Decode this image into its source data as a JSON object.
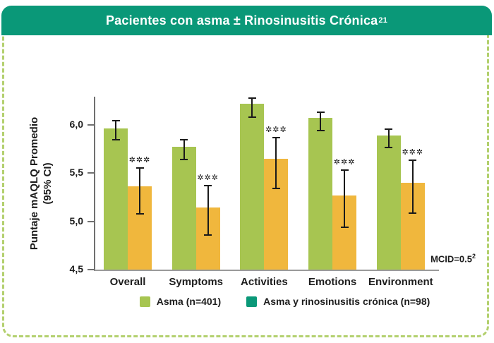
{
  "header": {
    "title": "Pacientes con asma ± Rinosinusitis Crónica",
    "title_sup": "21"
  },
  "colors": {
    "header_bg": "#0a9878",
    "asma": "#a7c551",
    "cronica": "#f0b73d",
    "legend_cronica": "#0a9878",
    "dashed_border": "#b3d06e",
    "axis_y": "#6f6f6f",
    "axis_x": "#9a9a9a",
    "error_bar": "#1a1a1a",
    "text": "#1d1d1d"
  },
  "chart_data": {
    "type": "bar",
    "title": "Pacientes con asma ± Rinosinusitis Crónica",
    "categories": [
      "Overall",
      "Symptoms",
      "Activities",
      "Emotions",
      "Environment"
    ],
    "series": [
      {
        "key": "asma",
        "name": "Asma (n=401)",
        "color_key": "asma",
        "values": [
          5.96,
          5.77,
          6.22,
          6.07,
          5.89
        ],
        "ci_low": [
          5.84,
          5.63,
          6.07,
          5.93,
          5.76
        ],
        "ci_high": [
          6.05,
          5.85,
          6.28,
          6.14,
          5.96
        ]
      },
      {
        "key": "cronica",
        "name": "Asma y rinosinusitis crónica (n=98)",
        "color_key": "cronica",
        "values": [
          5.36,
          5.14,
          5.65,
          5.27,
          5.4
        ],
        "ci_low": [
          5.07,
          4.85,
          5.33,
          4.93,
          5.08
        ],
        "ci_high": [
          5.56,
          5.38,
          5.87,
          5.54,
          5.64
        ],
        "sig_markers": [
          "✲✲✲",
          "✲✲✲",
          "✲✲✲",
          "✲✲✲",
          "✲✲✲"
        ]
      }
    ],
    "ylabel_line1": "Puntaje mAQLQ Promedio",
    "ylabel_line2": "(95% CI)",
    "ytick_labels": [
      "6,0",
      "5,5",
      "5,0",
      "4,5"
    ],
    "ytick_values": [
      6.0,
      5.5,
      5.0,
      4.5
    ],
    "ylim": [
      4.5,
      6.29
    ],
    "grid": false,
    "legend_position": "bottom",
    "annotation": "MCID=0.5",
    "annotation_sup": "2"
  },
  "legend": {
    "entries": [
      {
        "label": "Asma (n=401)",
        "color_key": "asma"
      },
      {
        "label": "Asma y rinosinusitis crónica (n=98)",
        "color_key": "legend_cronica"
      }
    ]
  }
}
